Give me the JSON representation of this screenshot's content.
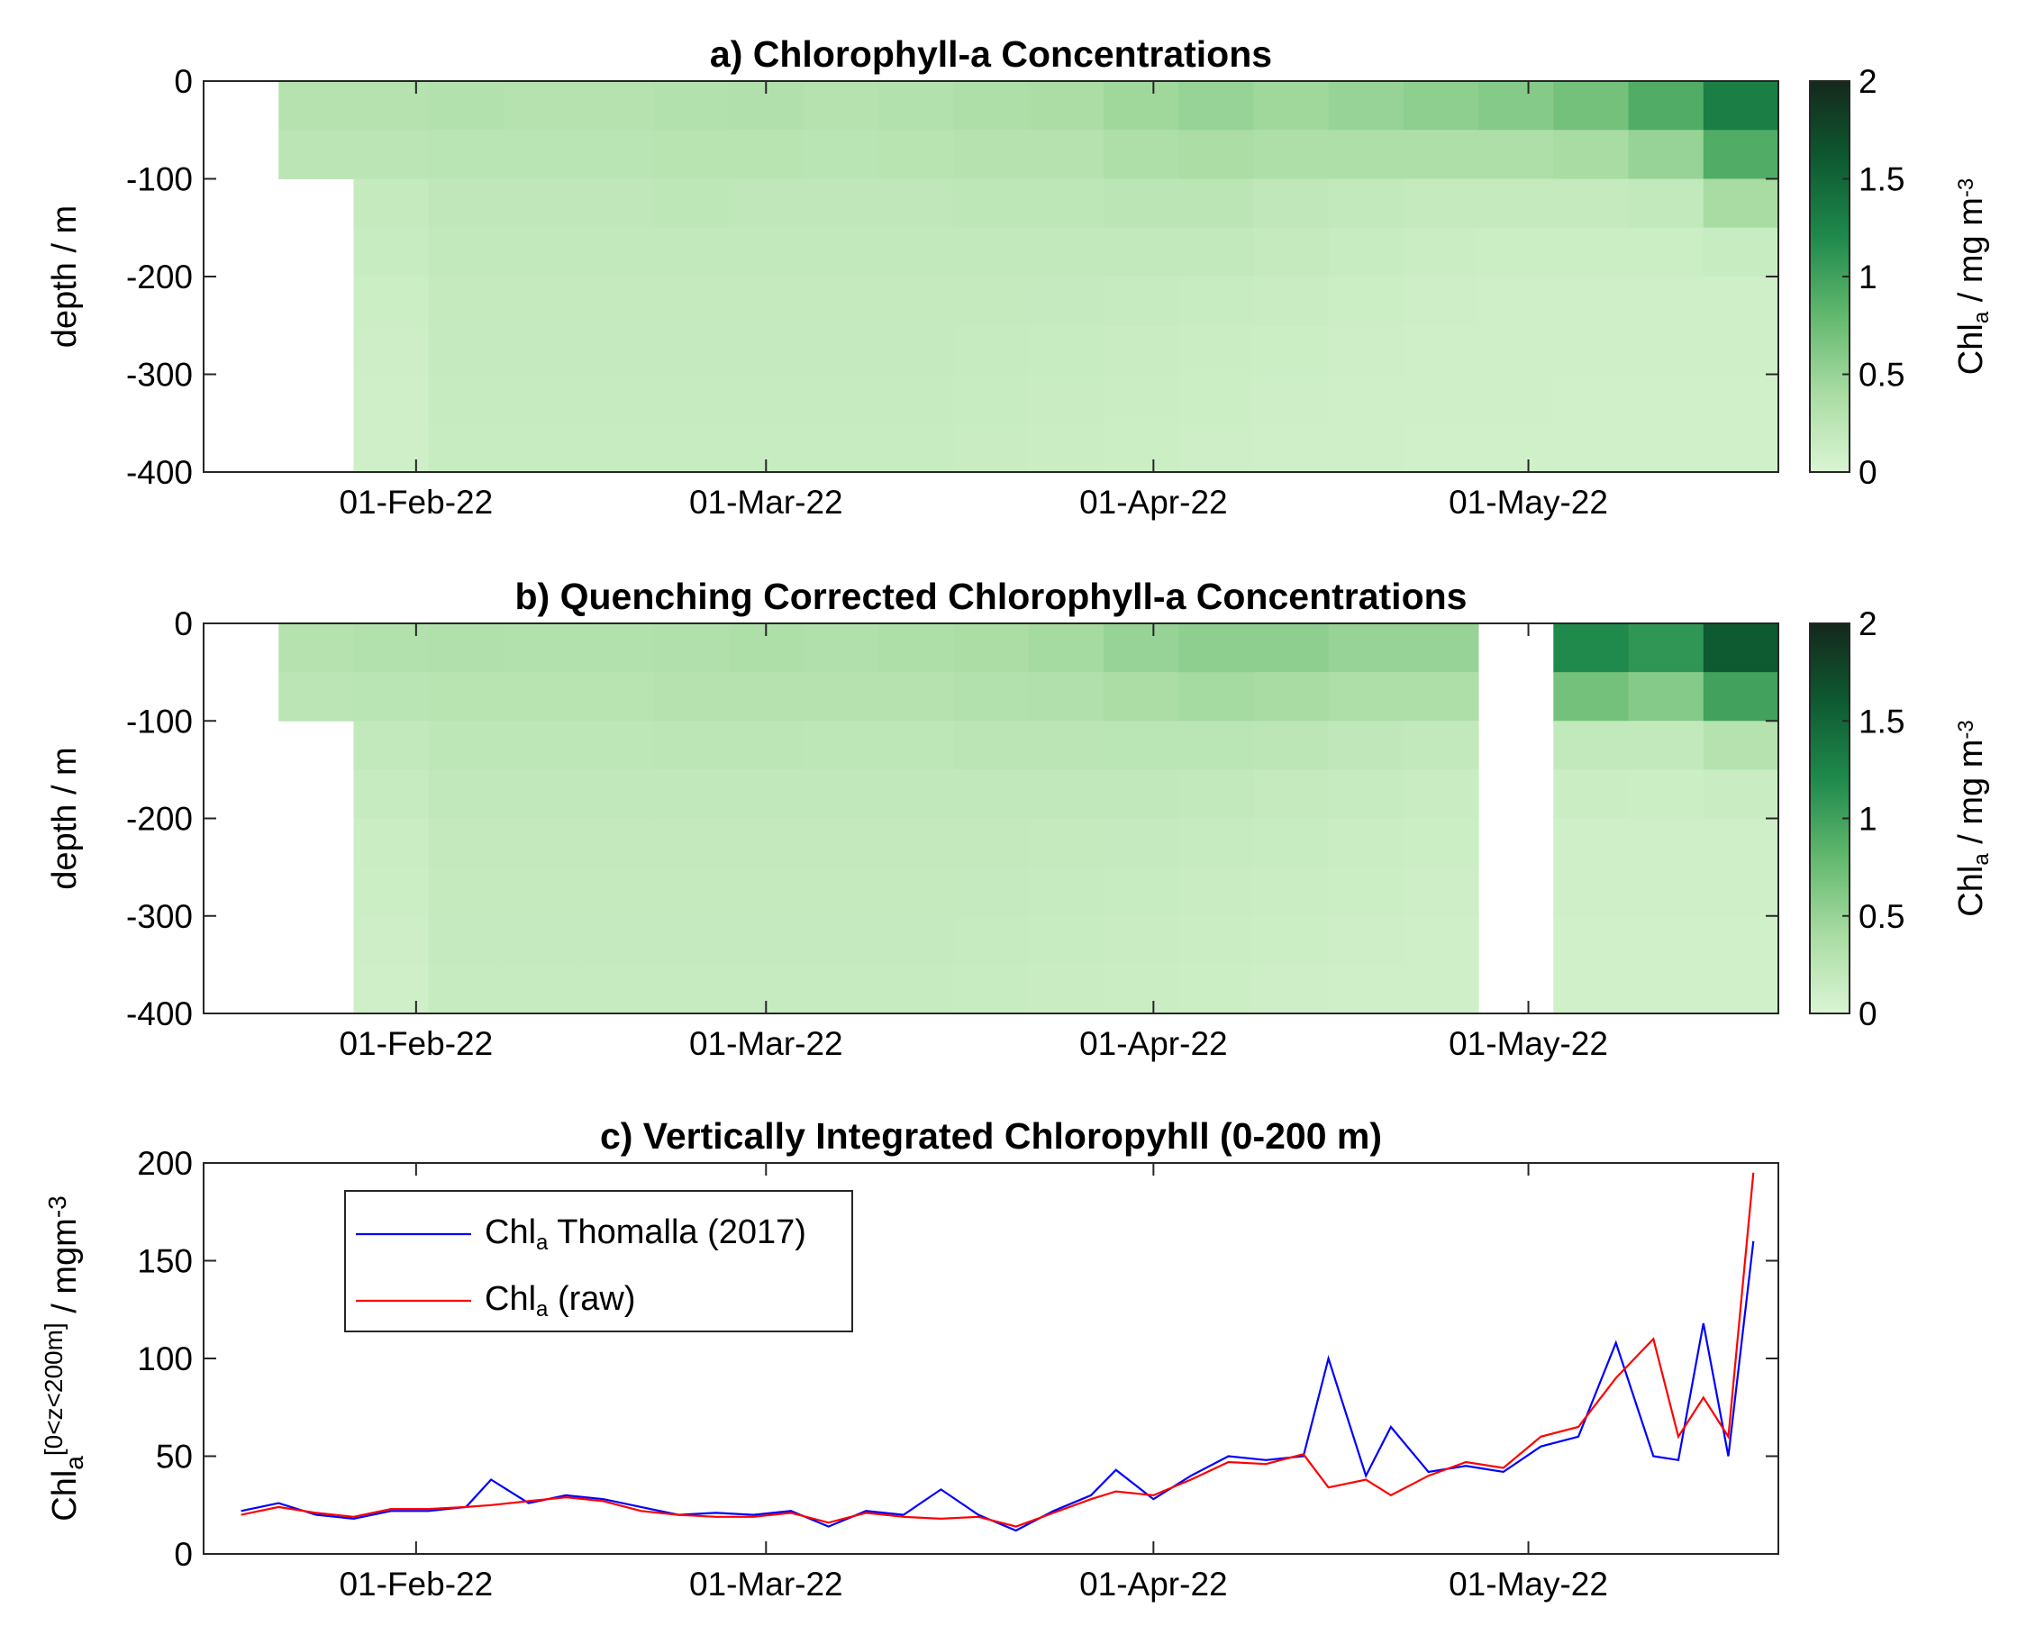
{
  "chart_data": [
    {
      "type": "heatmap",
      "title": "a) Chlorophyll-a Concentrations",
      "ylabel": "depth / m",
      "colorbar_label": {
        "base": "Chl",
        "sub": "a",
        "rest": " / mg m",
        "sup": "-3"
      },
      "xlim": [
        "2022-01-15",
        "2022-05-21"
      ],
      "xticks": [
        {
          "value": "2022-02-01",
          "label": "01-Feb-22"
        },
        {
          "value": "2022-03-01",
          "label": "01-Mar-22"
        },
        {
          "value": "2022-04-01",
          "label": "01-Apr-22"
        },
        {
          "value": "2022-05-01",
          "label": "01-May-22"
        }
      ],
      "ylim": [
        -400,
        0
      ],
      "yticks": [
        -400,
        -300,
        -200,
        -100,
        0
      ],
      "clim": [
        0,
        2
      ],
      "cticks": [
        0,
        0.5,
        1,
        1.5,
        2
      ],
      "colormap": [
        "#daf5d4",
        "#a9dca3",
        "#62b86e",
        "#1f8a4c",
        "#0e5a31",
        "#14281c"
      ],
      "x_bins": [
        "2022-01-21",
        "2022-01-27",
        "2022-02-02",
        "2022-02-08",
        "2022-02-14",
        "2022-02-20",
        "2022-02-26",
        "2022-03-04",
        "2022-03-10",
        "2022-03-16",
        "2022-03-22",
        "2022-03-28",
        "2022-04-03",
        "2022-04-09",
        "2022-04-15",
        "2022-04-21",
        "2022-04-27",
        "2022-05-03",
        "2022-05-09",
        "2022-05-15",
        "2022-05-21"
      ],
      "depth_bins": [
        0,
        -50,
        -100,
        -150,
        -200,
        -250,
        -300,
        -350,
        -400
      ],
      "values": [
        [
          0.3,
          0.3,
          0.32,
          0.3,
          0.3,
          0.32,
          0.33,
          0.3,
          0.32,
          0.35,
          0.38,
          0.45,
          0.5,
          0.45,
          0.5,
          0.55,
          0.6,
          0.7,
          0.9,
          1.3
        ],
        [
          0.25,
          0.25,
          0.27,
          0.27,
          0.27,
          0.28,
          0.28,
          0.27,
          0.28,
          0.3,
          0.3,
          0.35,
          0.38,
          0.35,
          0.35,
          0.35,
          0.35,
          0.4,
          0.5,
          0.9
        ],
        [
          null,
          0.18,
          0.22,
          0.22,
          0.22,
          0.23,
          0.22,
          0.22,
          0.22,
          0.23,
          0.23,
          0.25,
          0.25,
          0.22,
          0.2,
          0.18,
          0.18,
          0.18,
          0.2,
          0.4
        ],
        [
          null,
          0.15,
          0.2,
          0.2,
          0.2,
          0.2,
          0.2,
          0.2,
          0.2,
          0.2,
          0.2,
          0.2,
          0.2,
          0.18,
          0.15,
          0.13,
          0.12,
          0.12,
          0.12,
          0.15
        ],
        [
          null,
          0.12,
          0.18,
          0.18,
          0.18,
          0.18,
          0.18,
          0.18,
          0.18,
          0.18,
          0.17,
          0.16,
          0.15,
          0.14,
          0.12,
          0.11,
          0.1,
          0.1,
          0.1,
          0.1
        ],
        [
          null,
          0.11,
          0.17,
          0.17,
          0.17,
          0.17,
          0.17,
          0.17,
          0.17,
          0.16,
          0.15,
          0.14,
          0.13,
          0.12,
          0.11,
          0.1,
          0.1,
          0.09,
          0.09,
          0.09
        ],
        [
          null,
          0.1,
          0.16,
          0.16,
          0.16,
          0.16,
          0.16,
          0.16,
          0.16,
          0.15,
          0.14,
          0.13,
          0.12,
          0.11,
          0.1,
          0.09,
          0.09,
          0.08,
          0.08,
          0.08
        ],
        [
          null,
          0.1,
          0.15,
          0.15,
          0.15,
          0.15,
          0.15,
          0.15,
          0.15,
          0.14,
          0.13,
          0.12,
          0.11,
          0.1,
          0.09,
          0.08,
          0.08,
          0.08,
          0.08,
          0.08
        ]
      ]
    },
    {
      "type": "heatmap",
      "title": "b) Quenching Corrected Chlorophyll-a Concentrations",
      "ylabel": "depth / m",
      "colorbar_label": {
        "base": "Chl",
        "sub": "a",
        "rest": " / mg m",
        "sup": "-3"
      },
      "xlim": [
        "2022-01-15",
        "2022-05-21"
      ],
      "xticks": [
        {
          "value": "2022-02-01",
          "label": "01-Feb-22"
        },
        {
          "value": "2022-03-01",
          "label": "01-Mar-22"
        },
        {
          "value": "2022-04-01",
          "label": "01-Apr-22"
        },
        {
          "value": "2022-05-01",
          "label": "01-May-22"
        }
      ],
      "ylim": [
        -400,
        0
      ],
      "yticks": [
        -400,
        -300,
        -200,
        -100,
        0
      ],
      "clim": [
        0,
        2
      ],
      "cticks": [
        0,
        0.5,
        1,
        1.5,
        2
      ],
      "colormap": [
        "#daf5d4",
        "#a9dca3",
        "#62b86e",
        "#1f8a4c",
        "#0e5a31",
        "#14281c"
      ],
      "x_bins": [
        "2022-01-21",
        "2022-01-27",
        "2022-02-02",
        "2022-02-08",
        "2022-02-14",
        "2022-02-20",
        "2022-02-26",
        "2022-03-04",
        "2022-03-10",
        "2022-03-16",
        "2022-03-22",
        "2022-03-28",
        "2022-04-03",
        "2022-04-09",
        "2022-04-15",
        "2022-04-21",
        "2022-04-27",
        "2022-05-03",
        "2022-05-09",
        "2022-05-15",
        "2022-05-21"
      ],
      "depth_bins": [
        0,
        -50,
        -100,
        -150,
        -200,
        -250,
        -300,
        -350,
        -400
      ],
      "values": [
        [
          0.3,
          0.32,
          0.33,
          0.32,
          0.32,
          0.33,
          0.35,
          0.33,
          0.35,
          0.38,
          0.42,
          0.5,
          0.55,
          0.55,
          0.5,
          0.5,
          null,
          1.2,
          1.1,
          1.6
        ],
        [
          0.25,
          0.27,
          0.28,
          0.28,
          0.28,
          0.3,
          0.3,
          0.3,
          0.3,
          0.32,
          0.33,
          0.38,
          0.42,
          0.4,
          0.36,
          0.35,
          null,
          0.7,
          0.6,
          1.0
        ],
        [
          null,
          0.2,
          0.23,
          0.23,
          0.23,
          0.24,
          0.24,
          0.23,
          0.23,
          0.25,
          0.25,
          0.26,
          0.26,
          0.24,
          0.22,
          0.2,
          null,
          0.2,
          0.2,
          0.3
        ],
        [
          null,
          0.16,
          0.21,
          0.21,
          0.21,
          0.21,
          0.21,
          0.21,
          0.21,
          0.21,
          0.21,
          0.21,
          0.2,
          0.18,
          0.16,
          0.14,
          null,
          0.13,
          0.12,
          0.14
        ],
        [
          null,
          0.13,
          0.19,
          0.19,
          0.19,
          0.19,
          0.19,
          0.19,
          0.19,
          0.19,
          0.18,
          0.17,
          0.16,
          0.15,
          0.13,
          0.12,
          null,
          0.1,
          0.1,
          0.1
        ],
        [
          null,
          0.12,
          0.18,
          0.18,
          0.18,
          0.18,
          0.18,
          0.18,
          0.18,
          0.17,
          0.16,
          0.15,
          0.14,
          0.13,
          0.12,
          0.11,
          null,
          0.09,
          0.09,
          0.09
        ],
        [
          null,
          0.11,
          0.17,
          0.17,
          0.17,
          0.17,
          0.17,
          0.17,
          0.17,
          0.16,
          0.15,
          0.14,
          0.13,
          0.12,
          0.11,
          0.1,
          null,
          0.08,
          0.08,
          0.08
        ],
        [
          null,
          0.1,
          0.16,
          0.16,
          0.16,
          0.16,
          0.16,
          0.16,
          0.16,
          0.15,
          0.14,
          0.13,
          0.12,
          0.11,
          0.1,
          0.09,
          null,
          0.08,
          0.08,
          0.08
        ]
      ]
    },
    {
      "type": "line",
      "title": "c) Vertically Integrated Chloropyhll (0-200 m)",
      "ylabel": {
        "base": "Chl",
        "sub": "a",
        "sup": "[0<z<200m]",
        "rest": " / mgm",
        "sup2": "-3"
      },
      "xlim": [
        "2022-01-15",
        "2022-05-21"
      ],
      "xticks": [
        {
          "value": "2022-02-01",
          "label": "01-Feb-22"
        },
        {
          "value": "2022-03-01",
          "label": "01-Mar-22"
        },
        {
          "value": "2022-04-01",
          "label": "01-Apr-22"
        },
        {
          "value": "2022-05-01",
          "label": "01-May-22"
        }
      ],
      "ylim": [
        0,
        200
      ],
      "yticks": [
        0,
        50,
        100,
        150,
        200
      ],
      "legend": "upper left",
      "x": [
        "2022-01-18",
        "2022-01-21",
        "2022-01-24",
        "2022-01-27",
        "2022-01-30",
        "2022-02-02",
        "2022-02-05",
        "2022-02-07",
        "2022-02-10",
        "2022-02-13",
        "2022-02-16",
        "2022-02-19",
        "2022-02-22",
        "2022-02-25",
        "2022-02-28",
        "2022-03-03",
        "2022-03-06",
        "2022-03-09",
        "2022-03-12",
        "2022-03-15",
        "2022-03-18",
        "2022-03-21",
        "2022-03-24",
        "2022-03-27",
        "2022-03-29",
        "2022-04-01",
        "2022-04-04",
        "2022-04-07",
        "2022-04-10",
        "2022-04-13",
        "2022-04-15",
        "2022-04-18",
        "2022-04-20",
        "2022-04-23",
        "2022-04-26",
        "2022-04-29",
        "2022-05-02",
        "2022-05-05",
        "2022-05-08",
        "2022-05-11",
        "2022-05-13",
        "2022-05-15",
        "2022-05-17",
        "2022-05-19"
      ],
      "series": [
        {
          "name_parts": [
            "Chl",
            "a",
            " Thomalla (2017)"
          ],
          "color": "#0000ff",
          "values": [
            22,
            26,
            20,
            18,
            22,
            22,
            24,
            38,
            26,
            30,
            28,
            24,
            20,
            21,
            20,
            22,
            14,
            22,
            20,
            33,
            20,
            12,
            22,
            30,
            43,
            28,
            40,
            50,
            48,
            50,
            100,
            40,
            65,
            42,
            45,
            42,
            55,
            60,
            108,
            50,
            48,
            118,
            50,
            160
          ]
        },
        {
          "name_parts": [
            "Chl",
            "a",
            " (raw)"
          ],
          "color": "#ff0000",
          "values": [
            20,
            24,
            21,
            19,
            23,
            23,
            24,
            25,
            27,
            29,
            27,
            22,
            20,
            19,
            19,
            21,
            16,
            21,
            19,
            18,
            19,
            14,
            21,
            28,
            32,
            30,
            38,
            47,
            46,
            51,
            34,
            38,
            30,
            40,
            47,
            44,
            60,
            65,
            90,
            110,
            60,
            80,
            60,
            195
          ]
        }
      ]
    }
  ]
}
